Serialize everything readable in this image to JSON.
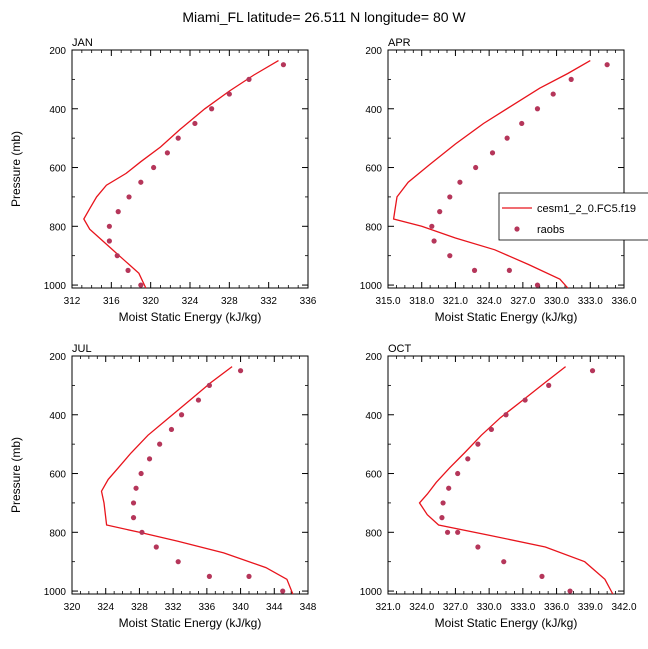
{
  "title": "Miami_FL  latitude= 26.511 N longitude= 80 W",
  "colors": {
    "model": "#e8141c",
    "obs": "#b5365a"
  },
  "legend": {
    "model_label": "cesm1_2_0.FC5.f19",
    "obs_label": "raobs"
  },
  "chart_data": [
    {
      "type": "line",
      "panel": "JAN",
      "xlabel": "Moist Static Energy (kJ/kg)",
      "ylabel": "Pressure (mb)",
      "xlim": [
        312,
        336
      ],
      "ylim": [
        1010,
        200
      ],
      "xticks": [
        "312",
        "316",
        "320",
        "324",
        "328",
        "332",
        "336"
      ],
      "yticks": [
        "200",
        "400",
        "600",
        "800",
        "1000"
      ],
      "series": [
        {
          "name": "cesm1_2_0.FC5.f19",
          "kind": "line",
          "x": [
            333.0,
            330.5,
            328.0,
            325.5,
            323.0,
            321.0,
            319.0,
            317.5,
            315.5,
            314.5,
            313.8,
            313.2,
            313.8,
            314.8,
            316.8,
            318.8,
            319.5
          ],
          "y": [
            236,
            285,
            340,
            400,
            470,
            530,
            580,
            620,
            660,
            700,
            740,
            775,
            810,
            840,
            900,
            960,
            1010
          ]
        },
        {
          "name": "raobs",
          "kind": "scatter",
          "x": [
            333.5,
            330.0,
            328.0,
            326.2,
            324.5,
            322.8,
            321.7,
            320.3,
            319.0,
            317.8,
            316.7,
            315.8,
            315.8,
            316.6,
            317.7,
            319.0
          ],
          "y": [
            250,
            300,
            350,
            400,
            450,
            500,
            550,
            600,
            650,
            700,
            750,
            800,
            850,
            900,
            950,
            1000
          ]
        }
      ]
    },
    {
      "type": "line",
      "panel": "APR",
      "xlabel": "Moist Static Energy (kJ/kg)",
      "ylabel": "",
      "xlim": [
        315,
        336
      ],
      "ylim": [
        1010,
        200
      ],
      "xticks": [
        "315.0",
        "318.0",
        "321.0",
        "324.0",
        "327.0",
        "330.0",
        "333.0",
        "336.0"
      ],
      "yticks": [
        "200",
        "400",
        "600",
        "800",
        "1000"
      ],
      "series": [
        {
          "name": "cesm1_2_0.FC5.f19",
          "kind": "line",
          "x": [
            333.0,
            331.0,
            328.5,
            326.0,
            323.5,
            321.0,
            318.7,
            316.8,
            315.8,
            315.6,
            315.5,
            318.0,
            321.0,
            324.5,
            327.5,
            330.3,
            331.0
          ],
          "y": [
            236,
            280,
            330,
            390,
            450,
            520,
            590,
            650,
            700,
            750,
            775,
            800,
            840,
            880,
            930,
            980,
            1010
          ]
        },
        {
          "name": "raobs",
          "kind": "scatter",
          "x": [
            334.5,
            331.3,
            329.7,
            328.3,
            326.9,
            325.6,
            324.3,
            322.8,
            321.4,
            320.5,
            319.6,
            318.9,
            319.1,
            320.5,
            322.7,
            325.8,
            328.3
          ],
          "y": [
            250,
            300,
            350,
            400,
            450,
            500,
            550,
            600,
            650,
            700,
            750,
            800,
            850,
            900,
            950,
            950,
            1000
          ]
        }
      ]
    },
    {
      "type": "line",
      "panel": "JUL",
      "xlabel": "Moist Static Energy (kJ/kg)",
      "ylabel": "Pressure (mb)",
      "xlim": [
        320,
        348
      ],
      "ylim": [
        1010,
        200
      ],
      "xticks": [
        "320",
        "324",
        "328",
        "332",
        "336",
        "340",
        "344",
        "348"
      ],
      "yticks": [
        "200",
        "400",
        "600",
        "800",
        "1000"
      ],
      "series": [
        {
          "name": "cesm1_2_0.FC5.f19",
          "kind": "line",
          "x": [
            339.0,
            336.5,
            334.0,
            331.5,
            329.0,
            327.0,
            325.5,
            324.3,
            323.5,
            323.8,
            324.1,
            328.0,
            332.5,
            338.0,
            343.0,
            345.5,
            346.2
          ],
          "y": [
            236,
            290,
            350,
            410,
            470,
            530,
            580,
            620,
            660,
            700,
            775,
            800,
            830,
            870,
            920,
            960,
            1010
          ]
        },
        {
          "name": "raobs",
          "kind": "scatter",
          "x": [
            340.0,
            336.3,
            335.0,
            333.0,
            331.8,
            330.4,
            329.2,
            328.2,
            327.6,
            327.3,
            327.3,
            328.3,
            330.0,
            332.6,
            336.3,
            341.0,
            345.0
          ],
          "y": [
            250,
            300,
            350,
            400,
            450,
            500,
            550,
            600,
            650,
            700,
            750,
            800,
            850,
            900,
            950,
            950,
            1000
          ]
        }
      ]
    },
    {
      "type": "line",
      "panel": "OCT",
      "xlabel": "Moist Static Energy (kJ/kg)",
      "ylabel": "",
      "xlim": [
        321,
        342
      ],
      "ylim": [
        1010,
        200
      ],
      "xticks": [
        "321.0",
        "324.0",
        "327.0",
        "330.0",
        "333.0",
        "336.0",
        "339.0",
        "342.0"
      ],
      "yticks": [
        "200",
        "400",
        "600",
        "800",
        "1000"
      ],
      "series": [
        {
          "name": "cesm1_2_0.FC5.f19",
          "kind": "line",
          "x": [
            336.8,
            335.0,
            333.0,
            331.0,
            329.3,
            327.8,
            326.5,
            325.3,
            324.5,
            323.8,
            324.5,
            325.5,
            330.0,
            335.0,
            338.5,
            340.3,
            341.0
          ],
          "y": [
            236,
            290,
            350,
            410,
            470,
            530,
            580,
            630,
            670,
            700,
            740,
            775,
            810,
            850,
            900,
            960,
            1010
          ]
        },
        {
          "name": "raobs",
          "kind": "scatter",
          "x": [
            339.2,
            335.3,
            333.2,
            331.5,
            330.2,
            329.0,
            328.1,
            327.2,
            326.4,
            325.9,
            325.8,
            326.3,
            327.2,
            329.0,
            331.3,
            334.7,
            337.2
          ],
          "y": [
            250,
            300,
            350,
            400,
            450,
            500,
            550,
            600,
            650,
            700,
            750,
            800,
            800,
            850,
            900,
            950,
            1000
          ]
        }
      ]
    }
  ]
}
